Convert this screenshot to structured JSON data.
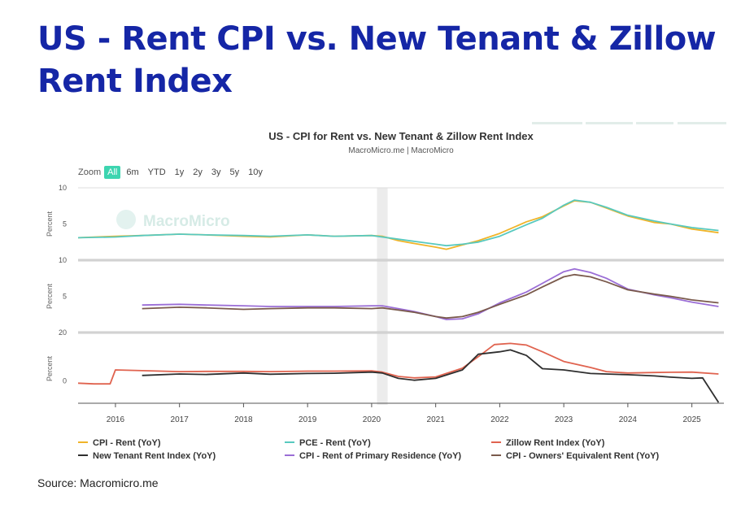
{
  "slide": {
    "title": "US - Rent CPI vs. New Tenant & Zillow Rent Index",
    "source": "Source: Macromicro.me"
  },
  "chart": {
    "title": "US - CPI for Rent vs. New Tenant & Zillow Rent Index",
    "subtitle": "MacroMicro.me | MacroMicro",
    "watermark": "MacroMicro",
    "zoom_label": "Zoom",
    "zoom_options": [
      "All",
      "6m",
      "YTD",
      "1y",
      "2y",
      "3y",
      "5y",
      "10y"
    ],
    "zoom_selected": "All"
  },
  "chart_data": {
    "type": "line",
    "x_axis": {
      "type": "datetime",
      "range": [
        "2015-06",
        "2025-07"
      ],
      "tick_labels": [
        "2016",
        "2017",
        "2018",
        "2019",
        "2020",
        "2021",
        "2022",
        "2023",
        "2024",
        "2025"
      ]
    },
    "highlight_band": [
      "2020-02",
      "2020-04"
    ],
    "legend_position": "bottom",
    "grid": false,
    "panels": [
      {
        "ylabel": "Percent",
        "ylim": [
          0,
          10
        ],
        "yticks": [
          "10",
          "5"
        ],
        "series": [
          {
            "name": "CPI - Rent (YoY)",
            "color": "#f0b429",
            "points": [
              [
                "2015-06",
                3.1
              ],
              [
                "2016-01",
                3.3
              ],
              [
                "2016-06",
                3.4
              ],
              [
                "2017-01",
                3.6
              ],
              [
                "2017-06",
                3.5
              ],
              [
                "2018-01",
                3.3
              ],
              [
                "2018-06",
                3.2
              ],
              [
                "2019-01",
                3.5
              ],
              [
                "2019-06",
                3.3
              ],
              [
                "2020-01",
                3.4
              ],
              [
                "2020-03",
                3.3
              ],
              [
                "2020-06",
                2.7
              ],
              [
                "2020-09",
                2.3
              ],
              [
                "2021-01",
                1.8
              ],
              [
                "2021-03",
                1.5
              ],
              [
                "2021-06",
                2.1
              ],
              [
                "2021-09",
                2.7
              ],
              [
                "2022-01",
                3.7
              ],
              [
                "2022-06",
                5.3
              ],
              [
                "2022-09",
                6.0
              ],
              [
                "2023-01",
                7.5
              ],
              [
                "2023-03",
                8.2
              ],
              [
                "2023-06",
                8.0
              ],
              [
                "2023-09",
                7.2
              ],
              [
                "2024-01",
                6.1
              ],
              [
                "2024-06",
                5.2
              ],
              [
                "2024-09",
                5.0
              ],
              [
                "2025-01",
                4.3
              ],
              [
                "2025-06",
                3.8
              ]
            ]
          },
          {
            "name": "PCE - Rent (YoY)",
            "color": "#58c9bf",
            "points": [
              [
                "2015-06",
                3.1
              ],
              [
                "2016-01",
                3.2
              ],
              [
                "2016-06",
                3.4
              ],
              [
                "2017-01",
                3.6
              ],
              [
                "2017-06",
                3.5
              ],
              [
                "2018-01",
                3.4
              ],
              [
                "2018-06",
                3.3
              ],
              [
                "2019-01",
                3.5
              ],
              [
                "2019-06",
                3.3
              ],
              [
                "2020-01",
                3.4
              ],
              [
                "2020-06",
                2.9
              ],
              [
                "2020-09",
                2.6
              ],
              [
                "2021-01",
                2.2
              ],
              [
                "2021-03",
                2.0
              ],
              [
                "2021-06",
                2.2
              ],
              [
                "2021-09",
                2.5
              ],
              [
                "2022-01",
                3.3
              ],
              [
                "2022-06",
                4.9
              ],
              [
                "2022-09",
                5.8
              ],
              [
                "2023-01",
                7.6
              ],
              [
                "2023-03",
                8.3
              ],
              [
                "2023-06",
                8.0
              ],
              [
                "2023-09",
                7.3
              ],
              [
                "2024-01",
                6.2
              ],
              [
                "2024-06",
                5.4
              ],
              [
                "2024-09",
                5.0
              ],
              [
                "2025-01",
                4.5
              ],
              [
                "2025-06",
                4.1
              ]
            ]
          }
        ]
      },
      {
        "ylabel": "Percent",
        "ylim": [
          0,
          10
        ],
        "yticks": [
          "10",
          "5"
        ],
        "series": [
          {
            "name": "CPI - Rent of Primary Residence (YoY)",
            "color": "#9b6ed6",
            "points": [
              [
                "2016-06",
                3.8
              ],
              [
                "2017-01",
                3.9
              ],
              [
                "2017-06",
                3.8
              ],
              [
                "2018-01",
                3.7
              ],
              [
                "2018-06",
                3.6
              ],
              [
                "2019-01",
                3.6
              ],
              [
                "2019-06",
                3.6
              ],
              [
                "2020-01",
                3.7
              ],
              [
                "2020-03",
                3.7
              ],
              [
                "2020-06",
                3.3
              ],
              [
                "2020-09",
                2.9
              ],
              [
                "2021-01",
                2.2
              ],
              [
                "2021-03",
                1.8
              ],
              [
                "2021-06",
                1.9
              ],
              [
                "2021-09",
                2.6
              ],
              [
                "2022-01",
                4.1
              ],
              [
                "2022-06",
                5.6
              ],
              [
                "2022-09",
                6.8
              ],
              [
                "2023-01",
                8.4
              ],
              [
                "2023-03",
                8.8
              ],
              [
                "2023-06",
                8.3
              ],
              [
                "2023-09",
                7.5
              ],
              [
                "2024-01",
                6.0
              ],
              [
                "2024-06",
                5.2
              ],
              [
                "2024-09",
                4.8
              ],
              [
                "2025-01",
                4.2
              ],
              [
                "2025-06",
                3.6
              ]
            ]
          },
          {
            "name": "CPI - Owners' Equivalent Rent (YoY)",
            "color": "#7a5a4c",
            "points": [
              [
                "2016-06",
                3.3
              ],
              [
                "2017-01",
                3.5
              ],
              [
                "2017-06",
                3.4
              ],
              [
                "2018-01",
                3.2
              ],
              [
                "2018-06",
                3.3
              ],
              [
                "2019-01",
                3.4
              ],
              [
                "2019-06",
                3.4
              ],
              [
                "2020-01",
                3.3
              ],
              [
                "2020-03",
                3.4
              ],
              [
                "2020-06",
                3.1
              ],
              [
                "2020-09",
                2.8
              ],
              [
                "2021-01",
                2.2
              ],
              [
                "2021-03",
                2.0
              ],
              [
                "2021-06",
                2.2
              ],
              [
                "2021-09",
                2.8
              ],
              [
                "2022-01",
                3.9
              ],
              [
                "2022-06",
                5.2
              ],
              [
                "2022-09",
                6.3
              ],
              [
                "2023-01",
                7.7
              ],
              [
                "2023-03",
                8.0
              ],
              [
                "2023-06",
                7.7
              ],
              [
                "2023-09",
                7.0
              ],
              [
                "2024-01",
                5.9
              ],
              [
                "2024-06",
                5.3
              ],
              [
                "2024-09",
                5.0
              ],
              [
                "2025-01",
                4.5
              ],
              [
                "2025-06",
                4.1
              ]
            ]
          }
        ]
      },
      {
        "ylabel": "Percent",
        "ylim": [
          -10,
          20
        ],
        "yticks": [
          "20",
          "0"
        ],
        "series": [
          {
            "name": "Zillow Rent Index (YoY)",
            "color": "#e0634f",
            "points": [
              [
                "2015-06",
                -1.0
              ],
              [
                "2015-09",
                -1.3
              ],
              [
                "2015-12",
                -1.3
              ],
              [
                "2016-01",
                4.5
              ],
              [
                "2016-06",
                4.2
              ],
              [
                "2017-01",
                3.8
              ],
              [
                "2017-06",
                3.9
              ],
              [
                "2018-01",
                3.9
              ],
              [
                "2018-06",
                3.8
              ],
              [
                "2019-01",
                4.0
              ],
              [
                "2019-06",
                4.0
              ],
              [
                "2020-01",
                4.1
              ],
              [
                "2020-03",
                3.6
              ],
              [
                "2020-06",
                1.8
              ],
              [
                "2020-09",
                1.2
              ],
              [
                "2021-01",
                1.6
              ],
              [
                "2021-06",
                5.2
              ],
              [
                "2021-09",
                10.0
              ],
              [
                "2021-12",
                15.0
              ],
              [
                "2022-03",
                15.5
              ],
              [
                "2022-06",
                14.8
              ],
              [
                "2022-09",
                12.0
              ],
              [
                "2023-01",
                8.0
              ],
              [
                "2023-06",
                5.5
              ],
              [
                "2023-09",
                3.8
              ],
              [
                "2024-01",
                3.2
              ],
              [
                "2024-06",
                3.4
              ],
              [
                "2024-09",
                3.5
              ],
              [
                "2025-01",
                3.6
              ],
              [
                "2025-06",
                2.8
              ]
            ]
          },
          {
            "name": "New Tenant Rent Index (YoY)",
            "color": "#2f2f2f",
            "points": [
              [
                "2016-06",
                2.2
              ],
              [
                "2017-01",
                2.8
              ],
              [
                "2017-06",
                2.6
              ],
              [
                "2018-01",
                3.2
              ],
              [
                "2018-06",
                2.7
              ],
              [
                "2019-01",
                3.0
              ],
              [
                "2019-06",
                3.1
              ],
              [
                "2020-01",
                3.6
              ],
              [
                "2020-03",
                3.2
              ],
              [
                "2020-06",
                1.0
              ],
              [
                "2020-09",
                0.2
              ],
              [
                "2021-01",
                1.0
              ],
              [
                "2021-06",
                4.5
              ],
              [
                "2021-09",
                11.0
              ],
              [
                "2022-01",
                12.0
              ],
              [
                "2022-03",
                12.8
              ],
              [
                "2022-06",
                10.5
              ],
              [
                "2022-09",
                5.0
              ],
              [
                "2023-01",
                4.5
              ],
              [
                "2023-06",
                3.0
              ],
              [
                "2024-01",
                2.5
              ],
              [
                "2024-06",
                2.0
              ],
              [
                "2024-09",
                1.5
              ],
              [
                "2025-01",
                1.0
              ],
              [
                "2025-03",
                1.2
              ],
              [
                "2025-06",
                -9.0
              ]
            ]
          }
        ]
      }
    ]
  }
}
